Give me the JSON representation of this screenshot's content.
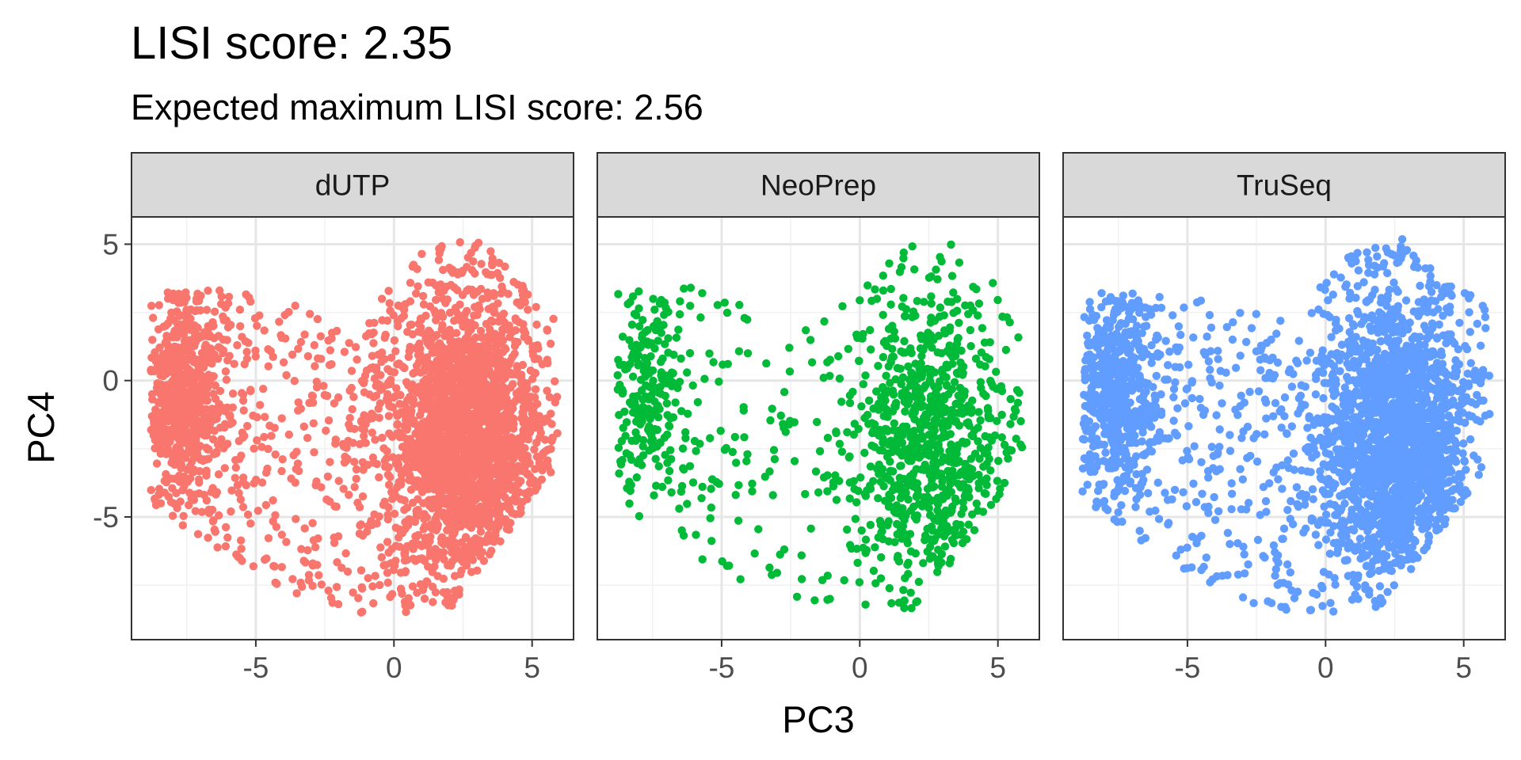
{
  "chart_data": {
    "type": "scatter",
    "title": "LISI score: 2.35",
    "subtitle": "Expected maximum LISI score: 2.56",
    "xlabel": "PC3",
    "ylabel": "PC4",
    "xlim": [
      -9.5,
      6.5
    ],
    "ylim": [
      -9.5,
      6
    ],
    "x_ticks": [
      -5,
      0,
      5
    ],
    "x_tick_labels": [
      "-5",
      "0",
      "5"
    ],
    "y_ticks": [
      5,
      0,
      -5
    ],
    "y_tick_labels": [
      "5",
      "0",
      "-5"
    ],
    "grid": true,
    "legend": "none",
    "facets": [
      {
        "name": "dUTP",
        "color": "#F8766D",
        "n_points": 3200
      },
      {
        "name": "NeoPrep",
        "color": "#00BA38",
        "n_points": 1200
      },
      {
        "name": "TruSeq",
        "color": "#619CFF",
        "n_points": 2800
      }
    ]
  }
}
